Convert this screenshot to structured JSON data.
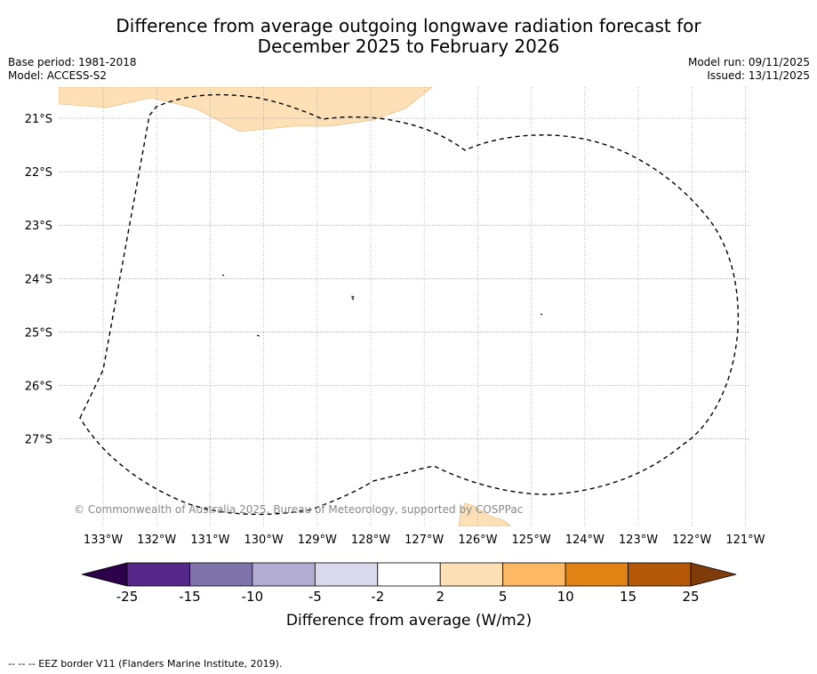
{
  "header": {
    "title_line1": "Difference from average outgoing longwave radiation forecast for",
    "title_line2": "December 2025 to February 2026",
    "base_period": "Base period: 1981-2018",
    "model": "Model: ACCESS-S2",
    "model_run": "Model run: 09/11/2025",
    "issued": "Issued: 13/11/2025"
  },
  "map": {
    "lat_labels": [
      "21°S",
      "22°S",
      "23°S",
      "24°S",
      "25°S",
      "26°S",
      "27°S"
    ],
    "lon_labels": [
      "133°W",
      "132°W",
      "131°W",
      "130°W",
      "129°W",
      "128°W",
      "127°W",
      "126°W",
      "125°W",
      "124°W",
      "123°W",
      "122°W",
      "121°W"
    ],
    "copyright": "© Commonwealth of Australia 2025, Bureau of Meteorology, supported by COSPPac",
    "anomaly_fill_color": "#fee0b6",
    "eez_border": "dashed"
  },
  "colorbar": {
    "title": "Difference from average (W/m2)",
    "tick_labels": [
      "-25",
      "-15",
      "-10",
      "-5",
      "-2",
      "2",
      "5",
      "10",
      "15",
      "25"
    ],
    "bins": [
      {
        "range": "< -25",
        "color": "#2d004b"
      },
      {
        "range": "-25 to -15",
        "color": "#542788"
      },
      {
        "range": "-15 to -10",
        "color": "#8073ac"
      },
      {
        "range": "-10 to -5",
        "color": "#b2abd2"
      },
      {
        "range": "-5 to -2",
        "color": "#d8daeb"
      },
      {
        "range": "-2 to 2",
        "color": "#ffffff"
      },
      {
        "range": "2 to 5",
        "color": "#fee0b6"
      },
      {
        "range": "5 to 10",
        "color": "#fdb863"
      },
      {
        "range": "10 to 15",
        "color": "#e08214"
      },
      {
        "range": "15 to 25",
        "color": "#b35806"
      },
      {
        "range": "> 25",
        "color": "#7f3b08"
      }
    ]
  },
  "footnote": "--  --  -- EEZ border V11 (Flanders Marine Institute, 2019)."
}
